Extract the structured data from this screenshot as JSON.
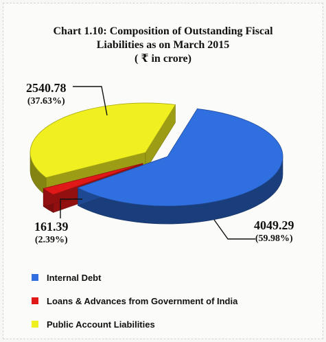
{
  "chart_data": {
    "type": "pie",
    "title_lines": [
      "Chart 1.10: Composition of  Outstanding Fiscal",
      "Liabilities as on March 2015",
      "( ₹ in crore)"
    ],
    "slices": [
      {
        "name": "Internal Debt",
        "value": 4049.29,
        "percent_label": "(59.98%)",
        "value_label": "4049.29",
        "color": "#2f6fe0"
      },
      {
        "name": "Loans & Advances from Government of India",
        "value": 161.39,
        "percent_label": "(2.39%)",
        "value_label": "161.39",
        "color": "#e01818"
      },
      {
        "name": "Public Account Liabilities",
        "value": 2540.78,
        "percent_label": "(37.63%)",
        "value_label": "2540.78",
        "color": "#f0f020"
      }
    ],
    "legend_placement": "bottom-left",
    "style": "3d-exploded"
  }
}
